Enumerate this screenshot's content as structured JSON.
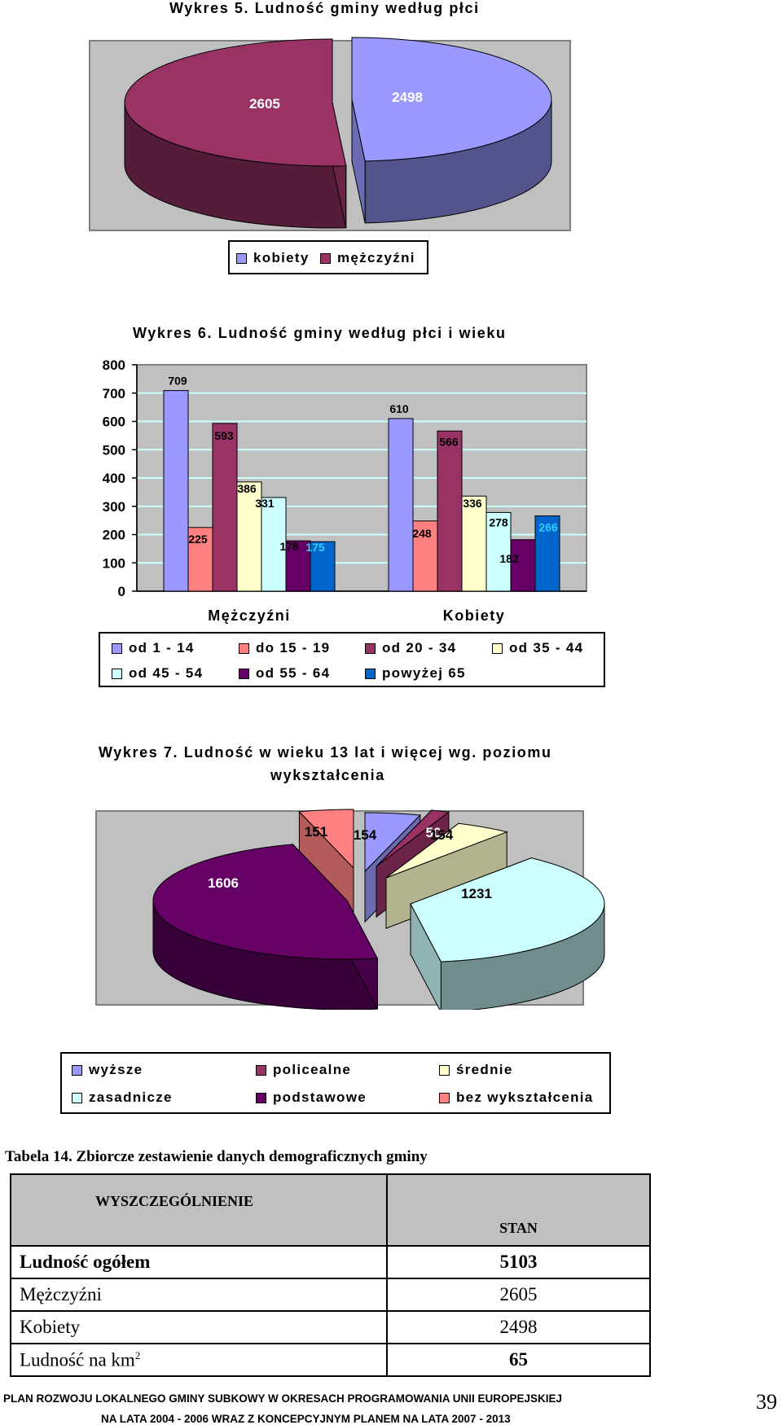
{
  "chart_data": [
    {
      "type": "pie",
      "title": "Wykres 5. Ludność gminy według płci",
      "labels": [
        "kobiety",
        "mężczyźni"
      ],
      "values": [
        2498,
        2605
      ],
      "colors": [
        "#9999ff",
        "#993366"
      ],
      "legend": [
        "kobiety",
        "mężczyźni"
      ]
    },
    {
      "type": "bar",
      "title": "Wykres 6. Ludność gminy według płci i wieku",
      "categories": [
        "Mężczyźni",
        "Kobiety"
      ],
      "series": [
        {
          "name": "od 1 - 14",
          "values": [
            709,
            610
          ],
          "color": "#9999ff"
        },
        {
          "name": "do 15 -  19",
          "values": [
            225,
            248
          ],
          "color": "#ff8080"
        },
        {
          "name": "od 20 - 34",
          "values": [
            593,
            566
          ],
          "color": "#993366"
        },
        {
          "name": "od 35 - 44",
          "values": [
            386,
            336
          ],
          "color": "#ffffcc"
        },
        {
          "name": "od 45 - 54",
          "values": [
            331,
            278
          ],
          "color": "#ccffff"
        },
        {
          "name": "od 55 - 64",
          "values": [
            178,
            182
          ],
          "color": "#660066"
        },
        {
          "name": "powyżej 65",
          "values": [
            175,
            266
          ],
          "color": "#0066cc"
        }
      ],
      "yticks": [
        "0",
        "100",
        "200",
        "300",
        "400",
        "500",
        "600",
        "700",
        "800"
      ],
      "ylim": [
        0,
        800
      ],
      "grid": true
    },
    {
      "type": "pie",
      "title": "Wykres 7. Ludność w wieku 13 lat i więcej wg. poziomu wykształcenia",
      "title_lines": [
        "Wykres 7. Ludność w wieku 13 lat i więcej wg. poziomu",
        "wykształcenia"
      ],
      "labels": [
        "wyższe",
        "policealne",
        "średnie",
        "zasadnicze",
        "podstawowe",
        "bez wykształcenia"
      ],
      "values": [
        154,
        50,
        154,
        1231,
        1606,
        151
      ],
      "colors": [
        "#9999ff",
        "#993366",
        "#ffffcc",
        "#ccffff",
        "#660066",
        "#ff8080"
      ],
      "legend": [
        "wyższe",
        "policealne",
        "średnie",
        "zasadnicze",
        "podstawowe",
        "bez wykształcenia"
      ]
    }
  ],
  "table": {
    "caption": "Tabela 14. Zbiorcze zestawienie danych demograficznych gminy",
    "headers": [
      "WYSZCZEGÓLNIENIE",
      "STAN"
    ],
    "rows": [
      {
        "label": "Ludność ogółem",
        "value": "5103",
        "bold": true
      },
      {
        "label": "Mężczyźni",
        "value": "2605",
        "bold": false
      },
      {
        "label": "Kobiety",
        "value": "2498",
        "bold": false
      },
      {
        "label": "Ludność na km",
        "sup": "2",
        "value": "65",
        "bold": false
      }
    ]
  },
  "footer": {
    "line1": "PLAN ROZWOJU LOKALNEGO GMINY SUBKOWY W OKRESACH PROGRAMOWANIA UNII EUROPEJSKIEJ",
    "line2": "NA LATA 2004 - 2006 WRAZ Z KONCEPCYJNYM PLANEM NA LATA 2007 - 2013",
    "page_number": "39"
  }
}
